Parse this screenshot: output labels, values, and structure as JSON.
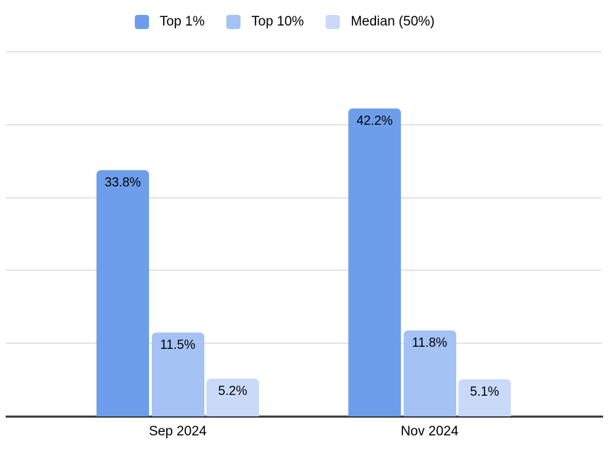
{
  "chart_data": {
    "type": "bar",
    "title": "",
    "categories": [
      "Sep 2024",
      "Nov 2024"
    ],
    "series": [
      {
        "name": "Top 1%",
        "color": "#6d9eeb",
        "values": [
          33.8,
          42.2
        ],
        "labels": [
          "33.8%",
          "42.2%"
        ]
      },
      {
        "name": "Top 10%",
        "color": "#a4c2f4",
        "values": [
          11.5,
          11.8
        ],
        "labels": [
          "11.5%",
          "11.8%"
        ]
      },
      {
        "name": "Median (50%)",
        "color": "#c9daf8",
        "values": [
          5.2,
          5.1
        ],
        "labels": [
          "5.2%",
          "5.1%"
        ]
      }
    ],
    "xlabel": "",
    "ylabel": "",
    "ylim": [
      0,
      50
    ],
    "grid": true,
    "grid_step": 10,
    "legend_position": "top",
    "value_labels_inside_bars": true,
    "colors": {
      "background": "#ffffff",
      "gridline": "#e4e4e4",
      "axis_line": "#3f3f3f",
      "text": "#000000"
    }
  }
}
